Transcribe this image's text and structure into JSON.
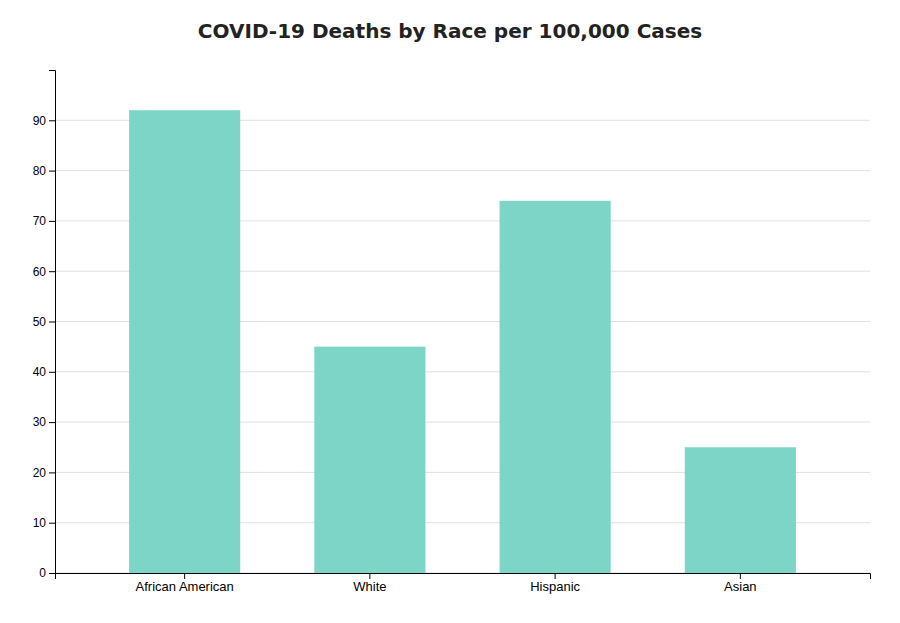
{
  "chart_data": {
    "type": "bar",
    "title": "COVID-19 Deaths by Race per 100,000 Cases",
    "categories": [
      "African American",
      "White",
      "Hispanic",
      "Asian"
    ],
    "values": [
      92,
      45,
      74,
      25
    ],
    "color": "#7dd5c8",
    "ylim": [
      0,
      100
    ],
    "yticks": [
      0,
      10,
      20,
      30,
      40,
      50,
      60,
      70,
      80,
      90
    ],
    "grid": true
  }
}
